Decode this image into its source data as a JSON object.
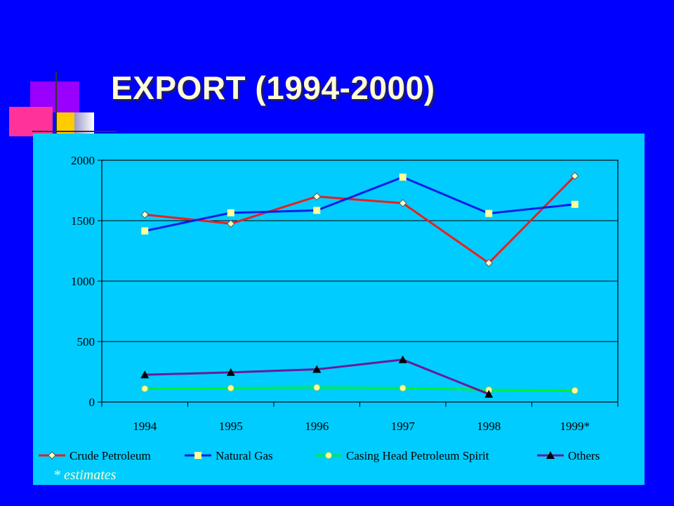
{
  "slide": {
    "title": "EXPORT (1994-2000)",
    "footnote": "* estimates"
  },
  "colors": {
    "background": "#0000ff",
    "chart_background": "#00ccff",
    "title": "#fffbd6"
  },
  "chart_data": {
    "type": "line",
    "categories": [
      "1994",
      "1995",
      "1996",
      "1997",
      "1998",
      "1999*"
    ],
    "ylim": [
      0,
      2000
    ],
    "yticks": [
      0,
      500,
      1000,
      1500,
      2000
    ],
    "grid": true,
    "legend_position": "bottom",
    "xlabel": "",
    "ylabel": "",
    "series": [
      {
        "name": "Crude Petroleum",
        "values": [
          1550,
          1475,
          1700,
          1645,
          1150,
          1870
        ],
        "color": "#e8211f",
        "marker": "diamond"
      },
      {
        "name": "Natural Gas",
        "values": [
          1415,
          1565,
          1585,
          1860,
          1560,
          1635
        ],
        "color": "#0a1ee6",
        "marker": "square"
      },
      {
        "name": "Casing Head Petroleum Spirit",
        "values": [
          110,
          115,
          120,
          115,
          100,
          95
        ],
        "color": "#00ee33",
        "marker": "circle"
      },
      {
        "name": "Others",
        "values": [
          225,
          245,
          270,
          350,
          65,
          null
        ],
        "color": "#6a1b9a",
        "marker": "triangle"
      }
    ]
  }
}
